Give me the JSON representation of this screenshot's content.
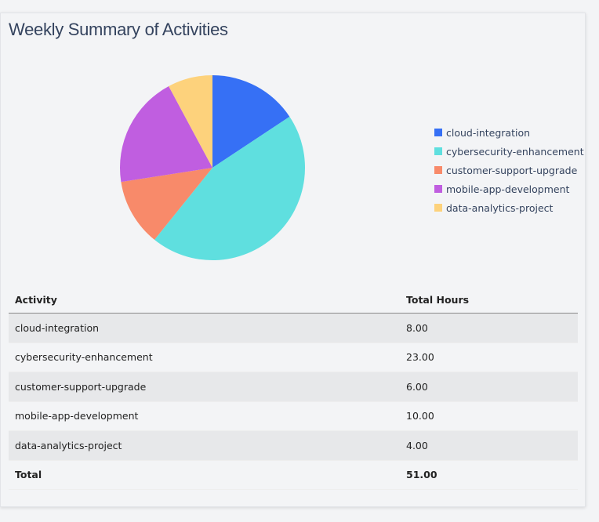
{
  "title": "Weekly Summary of Activities",
  "chart_data": {
    "type": "pie",
    "categories": [
      "cloud-integration",
      "cybersecurity-enhancement",
      "customer-support-upgrade",
      "mobile-app-development",
      "data-analytics-project"
    ],
    "values": [
      8,
      23,
      6,
      10,
      4
    ],
    "colors": [
      "#3670f5",
      "#5fdfdf",
      "#f88a6a",
      "#c05ee0",
      "#fdd27c"
    ],
    "legend_position": "right"
  },
  "table": {
    "headers": [
      "Activity",
      "Total Hours"
    ],
    "rows": [
      [
        "cloud-integration",
        "8.00"
      ],
      [
        "cybersecurity-enhancement",
        "23.00"
      ],
      [
        "customer-support-upgrade",
        "6.00"
      ],
      [
        "mobile-app-development",
        "10.00"
      ],
      [
        "data-analytics-project",
        "4.00"
      ]
    ],
    "total": [
      "Total",
      "51.00"
    ]
  }
}
